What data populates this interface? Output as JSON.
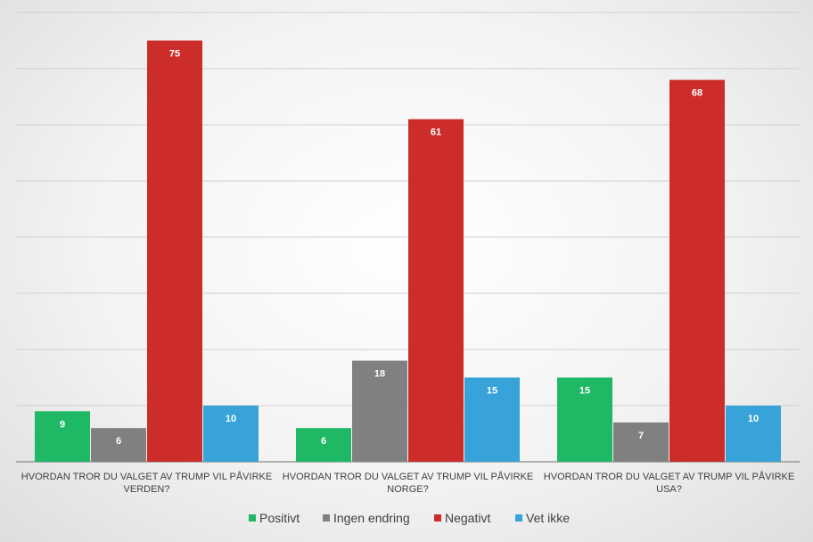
{
  "chart_data": {
    "type": "bar",
    "categories": [
      [
        "HVORDAN TROR DU VALGET AV TRUMP VIL PÅVIRKE",
        "VERDEN?"
      ],
      [
        "HVORDAN TROR DU VALGET AV TRUMP VIL PÅVIRKE",
        "NORGE?"
      ],
      [
        "HVORDAN TROR DU VALGET AV TRUMP VIL PÅVIRKE",
        "USA?"
      ]
    ],
    "series": [
      {
        "name": "Positivt",
        "color": "#1fb865",
        "values": [
          9,
          6,
          15
        ]
      },
      {
        "name": "Ingen endring",
        "color": "#808080",
        "values": [
          6,
          18,
          7
        ]
      },
      {
        "name": "Negativt",
        "color": "#cc2d2a",
        "values": [
          75,
          61,
          68
        ]
      },
      {
        "name": "Vet ikke",
        "color": "#37a3d8",
        "values": [
          10,
          15,
          10
        ]
      }
    ],
    "ylim": [
      0,
      80
    ],
    "gridlines": true,
    "gridline_step": 10,
    "legend_position": "bottom",
    "data_labels": true
  }
}
